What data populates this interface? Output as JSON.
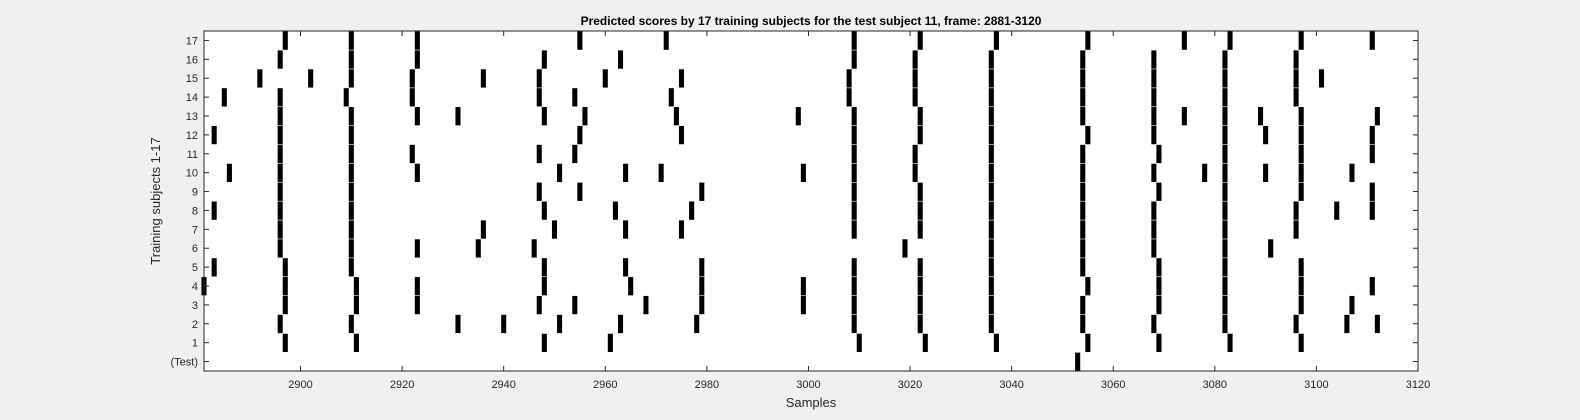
{
  "chart_data": {
    "type": "scatter",
    "title": "Predicted scores by 17 training subjects for the test subject 11, frame: 2881-3120",
    "xlabel": "Samples",
    "ylabel": "Training subjects 1-17",
    "xlim": [
      2881,
      3120
    ],
    "xticks": [
      2900,
      2920,
      2940,
      2960,
      2980,
      3000,
      3020,
      3040,
      3060,
      3080,
      3100,
      3120
    ],
    "rows": [
      "(Test)",
      "1",
      "2",
      "3",
      "4",
      "5",
      "6",
      "7",
      "8",
      "9",
      "10",
      "11",
      "12",
      "13",
      "14",
      "15",
      "16",
      "17"
    ],
    "marker": "vertical-bar",
    "grid": false,
    "colors": {
      "mark": "#000000",
      "plot_background": "#ffffff",
      "figure_background": "#f0f0f0"
    },
    "series": [
      {
        "name": "(Test)",
        "x": [
          3053
        ]
      },
      {
        "name": "1",
        "x": [
          2897,
          2911,
          2948,
          2961,
          3010,
          3023,
          3037,
          3055,
          3069,
          3083,
          3097
        ]
      },
      {
        "name": "2",
        "x": [
          2896,
          2910,
          2931,
          2940,
          2951,
          2963,
          2978,
          3009,
          3022,
          3036,
          3054,
          3068,
          3082,
          3096,
          3106,
          3112
        ]
      },
      {
        "name": "3",
        "x": [
          2897,
          2911,
          2923,
          2947,
          2954,
          2968,
          2979,
          2999,
          3009,
          3022,
          3036,
          3054,
          3069,
          3082,
          3097,
          3107
        ]
      },
      {
        "name": "4",
        "x": [
          2881,
          2897,
          2911,
          2923,
          2948,
          2965,
          2979,
          2999,
          3009,
          3022,
          3036,
          3055,
          3069,
          3082,
          3097,
          3111
        ]
      },
      {
        "name": "5",
        "x": [
          2883,
          2897,
          2910,
          2948,
          2964,
          2979,
          3009,
          3022,
          3036,
          3054,
          3069,
          3082,
          3097
        ]
      },
      {
        "name": "6",
        "x": [
          2896,
          2910,
          2923,
          2935,
          2946,
          3019,
          3036,
          3054,
          3068,
          3082,
          3091
        ]
      },
      {
        "name": "7",
        "x": [
          2896,
          2910,
          2936,
          2950,
          2964,
          2975,
          3009,
          3022,
          3036,
          3054,
          3068,
          3082,
          3096
        ]
      },
      {
        "name": "8",
        "x": [
          2883,
          2896,
          2910,
          2948,
          2962,
          2977,
          3009,
          3022,
          3036,
          3054,
          3068,
          3082,
          3096,
          3104,
          3111
        ]
      },
      {
        "name": "9",
        "x": [
          2896,
          2910,
          2947,
          2955,
          2979,
          3009,
          3022,
          3036,
          3054,
          3069,
          3082,
          3097,
          3111
        ]
      },
      {
        "name": "10",
        "x": [
          2886,
          2896,
          2910,
          2923,
          2951,
          2964,
          2971,
          2999,
          3009,
          3021,
          3036,
          3054,
          3068,
          3078,
          3082,
          3090,
          3097,
          3107
        ]
      },
      {
        "name": "11",
        "x": [
          2896,
          2910,
          2922,
          2947,
          2954,
          3009,
          3021,
          3036,
          3054,
          3069,
          3082,
          3097,
          3111
        ]
      },
      {
        "name": "12",
        "x": [
          2883,
          2896,
          2910,
          2955,
          2975,
          3009,
          3022,
          3036,
          3055,
          3068,
          3082,
          3090,
          3097,
          3111
        ]
      },
      {
        "name": "13",
        "x": [
          2896,
          2910,
          2923,
          2931,
          2948,
          2956,
          2974,
          2998,
          3009,
          3022,
          3036,
          3054,
          3068,
          3074,
          3082,
          3089,
          3097,
          3112
        ]
      },
      {
        "name": "14",
        "x": [
          2885,
          2896,
          2909,
          2922,
          2947,
          2954,
          2973,
          3008,
          3021,
          3036,
          3054,
          3068,
          3082,
          3096
        ]
      },
      {
        "name": "15",
        "x": [
          2892,
          2902,
          2910,
          2922,
          2936,
          2947,
          2960,
          2975,
          3008,
          3021,
          3036,
          3054,
          3068,
          3082,
          3096,
          3101
        ]
      },
      {
        "name": "16",
        "x": [
          2896,
          2910,
          2923,
          2948,
          2963,
          3009,
          3021,
          3036,
          3054,
          3068,
          3082,
          3096
        ]
      },
      {
        "name": "17",
        "x": [
          2897,
          2910,
          2923,
          2955,
          2972,
          3009,
          3022,
          3037,
          3055,
          3074,
          3083,
          3097,
          3111
        ]
      }
    ]
  }
}
